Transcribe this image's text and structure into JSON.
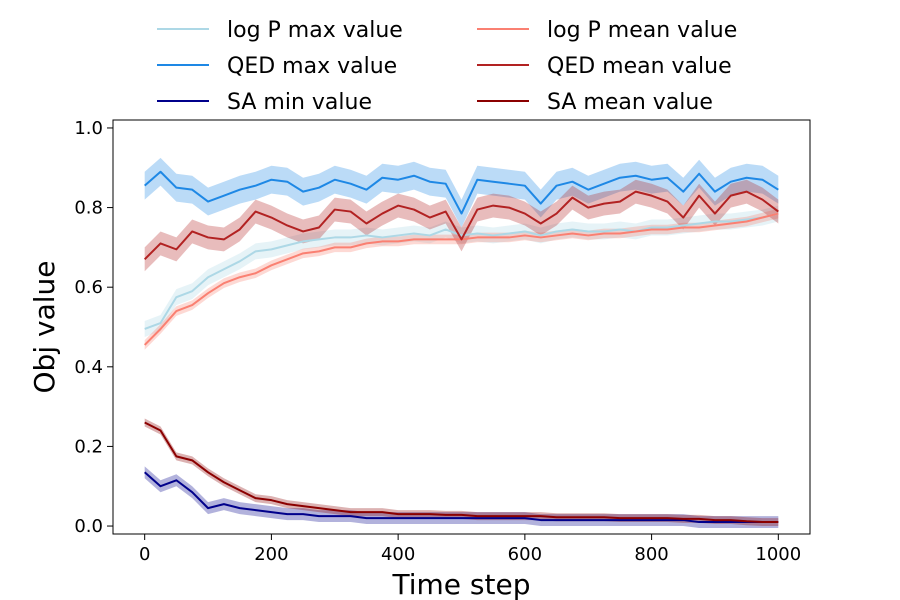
{
  "chart_data": {
    "type": "line",
    "xlabel": "Time step",
    "ylabel": "Obj value",
    "xlim": [
      -50,
      1050
    ],
    "ylim": [
      -0.02,
      1.02
    ],
    "xticks": [
      {
        "value": 0,
        "label": "0"
      },
      {
        "value": 200,
        "label": "200"
      },
      {
        "value": 400,
        "label": "400"
      },
      {
        "value": 600,
        "label": "600"
      },
      {
        "value": 800,
        "label": "800"
      },
      {
        "value": 1000,
        "label": "1000"
      }
    ],
    "yticks": [
      {
        "value": 0.0,
        "label": "0.0"
      },
      {
        "value": 0.2,
        "label": "0.2"
      },
      {
        "value": 0.4,
        "label": "0.4"
      },
      {
        "value": 0.6,
        "label": "0.6"
      },
      {
        "value": 0.8,
        "label": "0.8"
      },
      {
        "value": 1.0,
        "label": "1.0"
      }
    ],
    "grid": false,
    "legend_position": "top, outside plot, two columns",
    "x": [
      0,
      25,
      50,
      75,
      100,
      125,
      150,
      175,
      200,
      225,
      250,
      275,
      300,
      325,
      350,
      375,
      400,
      425,
      450,
      475,
      500,
      525,
      550,
      575,
      600,
      625,
      650,
      675,
      700,
      725,
      750,
      775,
      800,
      825,
      850,
      875,
      900,
      925,
      950,
      975,
      1000
    ],
    "series": [
      {
        "name": "log P max value",
        "color": "#add8e6",
        "values": [
          0.495,
          0.51,
          0.575,
          0.59,
          0.625,
          0.645,
          0.665,
          0.69,
          0.695,
          0.705,
          0.715,
          0.72,
          0.725,
          0.725,
          0.73,
          0.725,
          0.73,
          0.735,
          0.73,
          0.745,
          0.73,
          0.735,
          0.73,
          0.735,
          0.74,
          0.73,
          0.74,
          0.745,
          0.74,
          0.74,
          0.745,
          0.74,
          0.75,
          0.75,
          0.755,
          0.76,
          0.765,
          0.765,
          0.77,
          0.775,
          0.785
        ],
        "spread": 0.02
      },
      {
        "name": "QED max value",
        "color": "#1e88e5",
        "values": [
          0.855,
          0.89,
          0.85,
          0.845,
          0.815,
          0.83,
          0.845,
          0.855,
          0.87,
          0.865,
          0.84,
          0.85,
          0.87,
          0.86,
          0.845,
          0.875,
          0.87,
          0.88,
          0.865,
          0.86,
          0.785,
          0.87,
          0.865,
          0.86,
          0.855,
          0.81,
          0.855,
          0.865,
          0.845,
          0.86,
          0.875,
          0.88,
          0.87,
          0.875,
          0.84,
          0.885,
          0.84,
          0.865,
          0.875,
          0.87,
          0.845
        ],
        "spread": 0.035
      },
      {
        "name": "SA min value",
        "color": "#00008b",
        "values": [
          0.135,
          0.1,
          0.115,
          0.085,
          0.045,
          0.055,
          0.045,
          0.04,
          0.035,
          0.03,
          0.03,
          0.025,
          0.025,
          0.025,
          0.02,
          0.02,
          0.02,
          0.02,
          0.02,
          0.02,
          0.02,
          0.02,
          0.02,
          0.02,
          0.02,
          0.015,
          0.015,
          0.015,
          0.015,
          0.015,
          0.015,
          0.015,
          0.015,
          0.015,
          0.015,
          0.01,
          0.01,
          0.01,
          0.01,
          0.01,
          0.01
        ],
        "spread": 0.015
      },
      {
        "name": "log P mean value",
        "color": "#fa8072",
        "values": [
          0.455,
          0.495,
          0.54,
          0.555,
          0.585,
          0.61,
          0.625,
          0.635,
          0.655,
          0.67,
          0.685,
          0.69,
          0.7,
          0.7,
          0.71,
          0.715,
          0.715,
          0.72,
          0.72,
          0.72,
          0.72,
          0.725,
          0.725,
          0.725,
          0.73,
          0.725,
          0.73,
          0.735,
          0.73,
          0.735,
          0.735,
          0.74,
          0.745,
          0.745,
          0.75,
          0.75,
          0.755,
          0.76,
          0.765,
          0.775,
          0.785
        ],
        "spread": 0.012
      },
      {
        "name": "QED mean value",
        "color": "#b22222",
        "values": [
          0.67,
          0.71,
          0.695,
          0.74,
          0.725,
          0.72,
          0.745,
          0.79,
          0.775,
          0.755,
          0.74,
          0.75,
          0.795,
          0.79,
          0.76,
          0.785,
          0.805,
          0.795,
          0.775,
          0.79,
          0.72,
          0.795,
          0.805,
          0.8,
          0.785,
          0.76,
          0.785,
          0.825,
          0.8,
          0.81,
          0.815,
          0.84,
          0.83,
          0.815,
          0.775,
          0.83,
          0.785,
          0.83,
          0.84,
          0.82,
          0.79
        ],
        "spread": 0.03
      },
      {
        "name": "SA mean value",
        "color": "#8b0000",
        "values": [
          0.26,
          0.24,
          0.175,
          0.165,
          0.135,
          0.11,
          0.09,
          0.07,
          0.065,
          0.055,
          0.05,
          0.045,
          0.04,
          0.035,
          0.035,
          0.035,
          0.03,
          0.03,
          0.03,
          0.028,
          0.028,
          0.025,
          0.025,
          0.025,
          0.025,
          0.025,
          0.022,
          0.022,
          0.022,
          0.022,
          0.02,
          0.02,
          0.02,
          0.02,
          0.018,
          0.018,
          0.015,
          0.015,
          0.012,
          0.01,
          0.01
        ],
        "spread": 0.01
      }
    ]
  }
}
